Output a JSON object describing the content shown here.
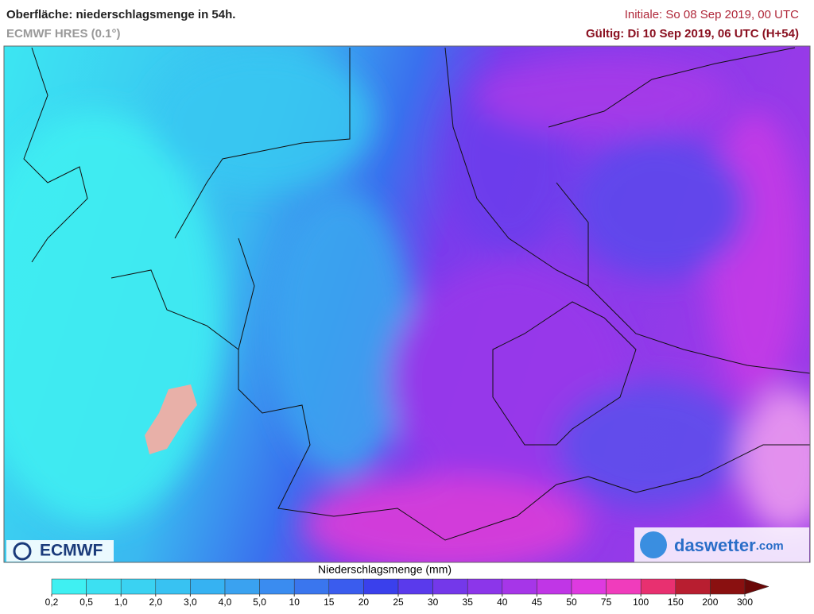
{
  "header": {
    "title": "Oberfläche: niederschlagsmenge in 54h.",
    "model": "ECMWF HRES (0.1°)",
    "initial": "Initiale: So 08 Sep 2019, 00 UTC",
    "valid": "Gültig: Di 10 Sep 2019, 06 UTC (H+54)"
  },
  "logos": {
    "left": "ECMWF",
    "right": "daswetter",
    "right_suffix": ".com"
  },
  "legend": {
    "title": "Niederschlagsmenge (mm)",
    "labels": [
      "0,2",
      "0,5",
      "1,0",
      "2,0",
      "3,0",
      "4,0",
      "5,0",
      "10",
      "15",
      "20",
      "25",
      "30",
      "35",
      "40",
      "45",
      "50",
      "75",
      "100",
      "150",
      "200",
      "300"
    ],
    "colors": [
      "#3ff0f2",
      "#3ce0f2",
      "#3ad2f2",
      "#38c2f2",
      "#36b2f2",
      "#3aa2f0",
      "#3a8cf0",
      "#3a76ee",
      "#3a5cee",
      "#3a40ec",
      "#5a3aec",
      "#7438ea",
      "#8c36ea",
      "#a636e8",
      "#c036e6",
      "#de3ae0",
      "#f03cbc",
      "#e83070",
      "#b81e30",
      "#8a1010",
      "#6a0808"
    ]
  }
}
